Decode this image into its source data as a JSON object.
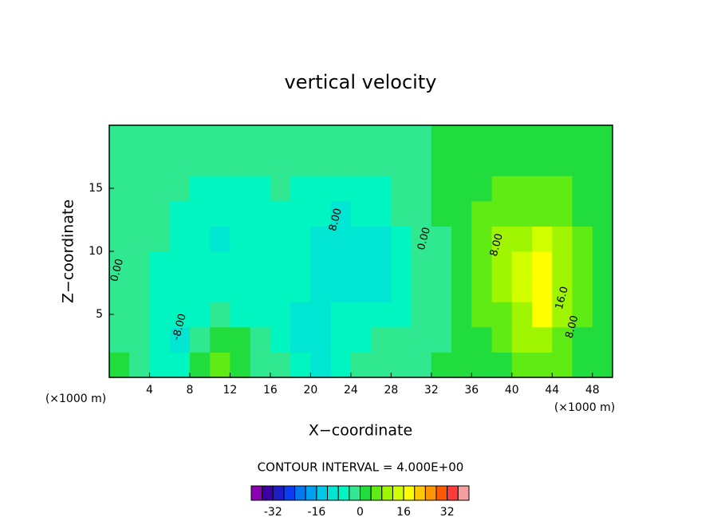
{
  "chart_data": {
    "type": "contour",
    "title": "vertical velocity",
    "x_label": "X−coordinate",
    "y_label": "Z−coordinate",
    "x_unit_label": "(×1000 m)",
    "contour_interval_label": "CONTOUR INTERVAL = 4.000E+00",
    "xlim": [
      0,
      50
    ],
    "ylim": [
      0,
      20
    ],
    "xticks": [
      4,
      8,
      12,
      16,
      20,
      24,
      28,
      32,
      36,
      40,
      44,
      48
    ],
    "yticks": [
      5,
      10,
      15
    ],
    "x": [
      1,
      3,
      5,
      7,
      9,
      11,
      13,
      15,
      17,
      19,
      21,
      23,
      25,
      27,
      29,
      31,
      33,
      35,
      37,
      39,
      41,
      43,
      45,
      47,
      49
    ],
    "y": [
      1,
      3,
      5,
      7,
      9,
      11,
      13,
      15,
      17,
      19
    ],
    "z": [
      [
        1,
        -2,
        -5,
        -6,
        2,
        6,
        1,
        -2,
        -3,
        -5,
        -9,
        -5,
        -3,
        -2,
        -2,
        -1,
        1,
        2,
        1,
        3,
        5,
        6,
        5,
        2,
        1
      ],
      [
        -1,
        -3,
        -6,
        -9,
        -1,
        3,
        0,
        -3,
        -5,
        -9,
        -10,
        -6,
        -5,
        -4,
        -3,
        -2,
        -1,
        1,
        3,
        5,
        8,
        9,
        7,
        3,
        1
      ],
      [
        -2,
        -3,
        -6,
        -7,
        -5,
        -3,
        -5,
        -5,
        -6,
        -9,
        -10,
        -8,
        -7,
        -6,
        -5,
        -1,
        -1,
        1,
        4,
        7,
        11,
        17,
        10,
        4,
        1
      ],
      [
        -3,
        -2,
        -5,
        -6,
        -6,
        -6,
        -7,
        -6,
        -6,
        -8,
        -9,
        -10,
        -11,
        -10,
        -6,
        -2,
        -1,
        2,
        5,
        9,
        14,
        18,
        11,
        5,
        2
      ],
      [
        -2,
        -1,
        -5,
        -6,
        -7,
        -7,
        -6,
        -6,
        -6,
        -7,
        -9,
        -10,
        -12,
        -10,
        -6,
        -1,
        -1,
        2,
        5,
        9,
        13,
        17,
        10,
        5,
        2
      ],
      [
        -1,
        -1,
        -4,
        -6,
        -7,
        -9,
        -6,
        -6,
        -6,
        -8,
        -9,
        -10,
        -11,
        -9,
        -5,
        -1,
        -1,
        2,
        5,
        8,
        10,
        12,
        9,
        4,
        2
      ],
      [
        -1,
        -1,
        -3,
        -5,
        -6,
        -6,
        -6,
        -6,
        -5,
        -6,
        -8,
        -9,
        -8,
        -7,
        -4,
        -1,
        0,
        2,
        4,
        7,
        7,
        7,
        6,
        3,
        1
      ],
      [
        -1,
        -1,
        -2,
        -4,
        -5,
        -5,
        -5,
        -5,
        -3,
        -5,
        -6,
        -6,
        -5,
        -5,
        -3,
        -1,
        0,
        1,
        3,
        5,
        5,
        5,
        4,
        2,
        1
      ],
      [
        -1,
        -1,
        -1,
        -3,
        -4,
        -4,
        -3,
        -2,
        -2,
        -3,
        -4,
        -4,
        -3,
        -2,
        -2,
        -1,
        0,
        1,
        2,
        2,
        3,
        2,
        2,
        1,
        1
      ],
      [
        -1,
        -1,
        -1,
        -1,
        -2,
        -2,
        -2,
        -1,
        -1,
        -1,
        -2,
        -2,
        -1,
        -1,
        -1,
        -1,
        0,
        1,
        1,
        1,
        1,
        1,
        1,
        1,
        0
      ]
    ],
    "levels": [
      -36,
      -32,
      -28,
      -24,
      -20,
      -16,
      -12,
      -8,
      -4,
      0,
      4,
      8,
      12,
      16,
      20,
      24,
      28,
      32,
      36
    ],
    "colors": [
      "#8c00b4",
      "#3c00a0",
      "#1e1ec8",
      "#0a3cf0",
      "#0078f0",
      "#00a0f0",
      "#00c8e6",
      "#00e6d2",
      "#00f5c0",
      "#30e890",
      "#20dc3c",
      "#60eb14",
      "#a0f500",
      "#d2ff00",
      "#ffff00",
      "#ffc800",
      "#ff9600",
      "#ff5a00",
      "#ff3c3c",
      "#f5a0a0"
    ],
    "colorbar_ticks": [
      -32,
      -16,
      0,
      16,
      32
    ],
    "contour_labels": [
      {
        "text": "0.00",
        "x": 0.8,
        "y": 8.5
      },
      {
        "text": "-8.00",
        "x": 7,
        "y": 4
      },
      {
        "text": "8.00",
        "x": 22.5,
        "y": 12.5
      },
      {
        "text": "0.00",
        "x": 31.3,
        "y": 11
      },
      {
        "text": "8.00",
        "x": 38.5,
        "y": 10.5
      },
      {
        "text": "16.0",
        "x": 45,
        "y": 6.3
      },
      {
        "text": "8.00",
        "x": 46,
        "y": 4
      }
    ]
  }
}
